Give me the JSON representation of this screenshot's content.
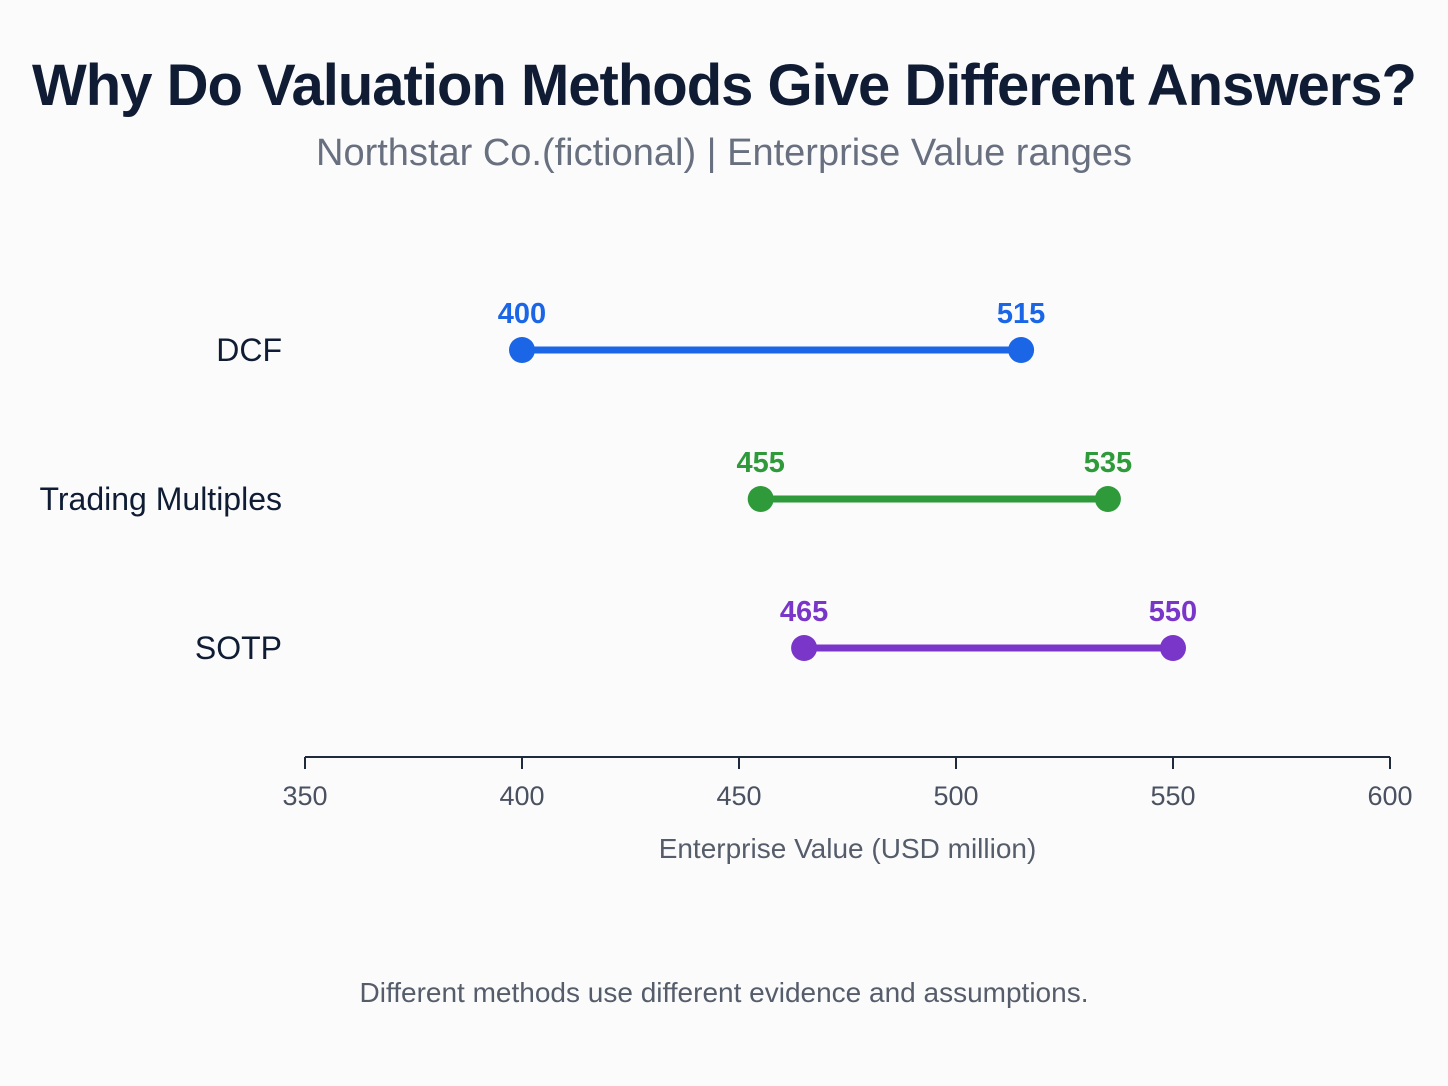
{
  "title": "Why Do Valuation Methods Give Different Answers?",
  "subtitle": "Northstar Co.(fictional) | Enterprise Value ranges",
  "footnote": "Different methods use different evidence and assumptions.",
  "chart_data": {
    "type": "range-dot",
    "title": "Why Do Valuation Methods Give Different Answers?",
    "subtitle": "Northstar Co.(fictional) | Enterprise Value ranges",
    "xlabel": "Enterprise Value (USD million)",
    "ylabel": "",
    "xlim": [
      350,
      600
    ],
    "xticks": [
      350,
      400,
      450,
      500,
      550,
      600
    ],
    "grid": false,
    "series": [
      {
        "name": "DCF",
        "low": 400,
        "high": 515,
        "color": "#1a66e6"
      },
      {
        "name": "Trading Multiples",
        "low": 455,
        "high": 535,
        "color": "#2e9a3a"
      },
      {
        "name": "SOTP",
        "low": 465,
        "high": 550,
        "color": "#7a35c9"
      }
    ]
  }
}
